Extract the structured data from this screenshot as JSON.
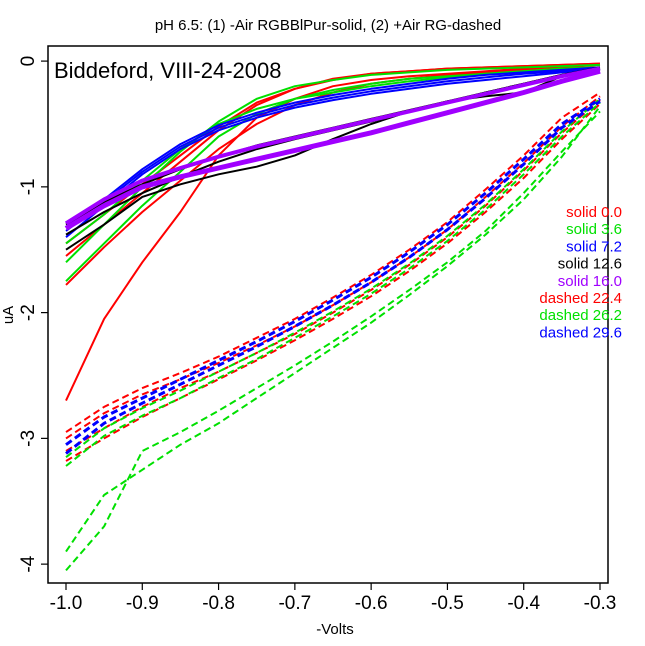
{
  "chart_data": {
    "type": "line",
    "title": "pH 6.5: (1) -Air RGBBlPur-solid, (2) +Air RG-dashed",
    "annotation": "Biddeford, VIII-24-2008",
    "xlabel": "-Volts",
    "ylabel": "uA",
    "xlim": [
      -1.0,
      -0.3
    ],
    "ylim": [
      -4.15,
      0.12
    ],
    "x_ticks": [
      "-1.0",
      "-0.9",
      "-0.8",
      "-0.7",
      "-0.6",
      "-0.5",
      "-0.4",
      "-0.3"
    ],
    "y_ticks": [
      "-4",
      "-3",
      "-2",
      "-1",
      "0"
    ],
    "grid": false,
    "legend_position": "right",
    "colors": {
      "red": "#ff0000",
      "green": "#00e000",
      "blue": "#0000ff",
      "black": "#000000",
      "purple": "#a000ff"
    },
    "legend": [
      {
        "label": "solid 0.0",
        "color": "#ff0000"
      },
      {
        "label": "solid 3.6",
        "color": "#00e000"
      },
      {
        "label": "solid 7.2",
        "color": "#0000ff"
      },
      {
        "label": "solid 12.6",
        "color": "#000000"
      },
      {
        "label": "solid 16.0",
        "color": "#a000ff"
      },
      {
        "label": "dashed 22.4",
        "color": "#ff0000"
      },
      {
        "label": "dashed 26.2",
        "color": "#00e000"
      },
      {
        "label": "dashed 29.6",
        "color": "#0000ff"
      }
    ],
    "x": [
      -1.0,
      -0.95,
      -0.9,
      -0.85,
      -0.8,
      -0.75,
      -0.7,
      -0.65,
      -0.6,
      -0.55,
      -0.5,
      -0.45,
      -0.4,
      -0.35,
      -0.3
    ],
    "series": [
      {
        "color": "#ff0000",
        "style": "solid",
        "width": 2,
        "values": [
          -2.7,
          -2.05,
          -1.6,
          -1.2,
          -0.75,
          -0.45,
          -0.3,
          -0.2,
          -0.15,
          -0.12,
          -0.1,
          -0.08,
          -0.06,
          -0.04,
          -0.03
        ]
      },
      {
        "color": "#ff0000",
        "style": "solid",
        "width": 2,
        "values": [
          -1.78,
          -1.48,
          -1.2,
          -0.95,
          -0.7,
          -0.5,
          -0.35,
          -0.25,
          -0.18,
          -0.14,
          -0.11,
          -0.09,
          -0.07,
          -0.05,
          -0.03
        ]
      },
      {
        "color": "#ff0000",
        "style": "solid",
        "width": 2,
        "values": [
          -1.55,
          -1.3,
          -1.05,
          -0.8,
          -0.55,
          -0.35,
          -0.22,
          -0.15,
          -0.1,
          -0.08,
          -0.06,
          -0.05,
          -0.04,
          -0.03,
          -0.02
        ]
      },
      {
        "color": "#ff0000",
        "style": "solid",
        "width": 2,
        "values": [
          -1.45,
          -1.22,
          -0.98,
          -0.75,
          -0.52,
          -0.33,
          -0.22,
          -0.14,
          -0.1,
          -0.08,
          -0.06,
          -0.05,
          -0.04,
          -0.03,
          -0.02
        ]
      },
      {
        "color": "#00e000",
        "style": "solid",
        "width": 2,
        "values": [
          -1.75,
          -1.45,
          -1.15,
          -0.88,
          -0.6,
          -0.42,
          -0.3,
          -0.23,
          -0.18,
          -0.14,
          -0.12,
          -0.1,
          -0.08,
          -0.06,
          -0.05
        ]
      },
      {
        "color": "#00e000",
        "style": "solid",
        "width": 2,
        "values": [
          -1.6,
          -1.3,
          -1.0,
          -0.72,
          -0.48,
          -0.3,
          -0.2,
          -0.15,
          -0.11,
          -0.09,
          -0.07,
          -0.06,
          -0.05,
          -0.04,
          -0.03
        ]
      },
      {
        "color": "#00e000",
        "style": "solid",
        "width": 2,
        "values": [
          -1.45,
          -1.22,
          -0.95,
          -0.7,
          -0.5,
          -0.38,
          -0.3,
          -0.25,
          -0.2,
          -0.16,
          -0.13,
          -0.1,
          -0.08,
          -0.06,
          -0.05
        ]
      },
      {
        "color": "#0000ff",
        "style": "solid",
        "width": 2,
        "values": [
          -1.4,
          -1.15,
          -0.9,
          -0.7,
          -0.55,
          -0.45,
          -0.37,
          -0.31,
          -0.26,
          -0.22,
          -0.18,
          -0.15,
          -0.12,
          -0.09,
          -0.07
        ]
      },
      {
        "color": "#0000ff",
        "style": "solid",
        "width": 2,
        "values": [
          -1.35,
          -1.12,
          -0.88,
          -0.68,
          -0.53,
          -0.43,
          -0.35,
          -0.29,
          -0.24,
          -0.2,
          -0.16,
          -0.13,
          -0.1,
          -0.08,
          -0.06
        ]
      },
      {
        "color": "#0000ff",
        "style": "solid",
        "width": 2,
        "values": [
          -1.32,
          -1.1,
          -0.86,
          -0.66,
          -0.51,
          -0.41,
          -0.33,
          -0.27,
          -0.22,
          -0.18,
          -0.14,
          -0.11,
          -0.09,
          -0.07,
          -0.05
        ]
      },
      {
        "color": "#000000",
        "style": "solid",
        "width": 2,
        "values": [
          -1.5,
          -1.3,
          -1.08,
          -0.98,
          -0.9,
          -0.84,
          -0.75,
          -0.62,
          -0.5,
          -0.4,
          -0.32,
          -0.28,
          -0.25,
          -0.12,
          -0.06
        ]
      },
      {
        "color": "#000000",
        "style": "solid",
        "width": 2,
        "values": [
          -1.38,
          -1.2,
          -1.05,
          -0.92,
          -0.8,
          -0.7,
          -0.62,
          -0.55,
          -0.48,
          -0.4,
          -0.33,
          -0.25,
          -0.18,
          -0.11,
          -0.06
        ]
      },
      {
        "color": "#000000",
        "style": "solid",
        "width": 2,
        "values": [
          -1.3,
          -1.12,
          -0.98,
          -0.86,
          -0.76,
          -0.67,
          -0.6,
          -0.53,
          -0.46,
          -0.39,
          -0.32,
          -0.25,
          -0.18,
          -0.11,
          -0.05
        ]
      },
      {
        "color": "#a000ff",
        "style": "solid",
        "width": 5,
        "values": [
          -1.33,
          -1.15,
          -1.0,
          -0.92,
          -0.85,
          -0.78,
          -0.71,
          -0.64,
          -0.57,
          -0.49,
          -0.41,
          -0.33,
          -0.25,
          -0.16,
          -0.08
        ]
      },
      {
        "color": "#a000ff",
        "style": "solid",
        "width": 4,
        "values": [
          -1.29,
          -1.1,
          -0.95,
          -0.85,
          -0.76,
          -0.68,
          -0.61,
          -0.54,
          -0.47,
          -0.4,
          -0.33,
          -0.26,
          -0.19,
          -0.12,
          -0.06
        ]
      },
      {
        "color": "#ff0000",
        "style": "dashed",
        "width": 2,
        "values": [
          -2.95,
          -2.75,
          -2.6,
          -2.48,
          -2.35,
          -2.2,
          -2.05,
          -1.88,
          -1.7,
          -1.5,
          -1.28,
          -1.02,
          -0.75,
          -0.45,
          -0.25
        ]
      },
      {
        "color": "#ff0000",
        "style": "dashed",
        "width": 2,
        "values": [
          -3.0,
          -2.8,
          -2.65,
          -2.53,
          -2.4,
          -2.26,
          -2.11,
          -1.94,
          -1.76,
          -1.56,
          -1.34,
          -1.08,
          -0.81,
          -0.52,
          -0.28
        ]
      },
      {
        "color": "#ff0000",
        "style": "dashed",
        "width": 2,
        "values": [
          -3.1,
          -2.92,
          -2.75,
          -2.6,
          -2.47,
          -2.32,
          -2.17,
          -2.0,
          -1.82,
          -1.62,
          -1.4,
          -1.15,
          -0.87,
          -0.57,
          -0.31
        ]
      },
      {
        "color": "#ff0000",
        "style": "dashed",
        "width": 2,
        "values": [
          -3.18,
          -3.0,
          -2.83,
          -2.68,
          -2.53,
          -2.38,
          -2.22,
          -2.05,
          -1.87,
          -1.67,
          -1.45,
          -1.2,
          -0.93,
          -0.62,
          -0.34
        ]
      },
      {
        "color": "#00e000",
        "style": "dashed",
        "width": 2,
        "values": [
          -4.05,
          -3.7,
          -3.1,
          -2.95,
          -2.78,
          -2.6,
          -2.42,
          -2.23,
          -2.03,
          -1.82,
          -1.6,
          -1.35,
          -1.05,
          -0.72,
          -0.4
        ]
      },
      {
        "color": "#00e000",
        "style": "dashed",
        "width": 2,
        "values": [
          -3.9,
          -3.45,
          -3.25,
          -3.05,
          -2.88,
          -2.68,
          -2.48,
          -2.28,
          -2.08,
          -1.86,
          -1.63,
          -1.38,
          -1.1,
          -0.76,
          -0.36
        ]
      },
      {
        "color": "#00e000",
        "style": "dashed",
        "width": 2,
        "values": [
          -3.22,
          -2.98,
          -2.82,
          -2.68,
          -2.52,
          -2.37,
          -2.2,
          -2.03,
          -1.85,
          -1.65,
          -1.43,
          -1.18,
          -0.9,
          -0.6,
          -0.33
        ]
      },
      {
        "color": "#00e000",
        "style": "dashed",
        "width": 2,
        "values": [
          -3.15,
          -2.92,
          -2.76,
          -2.62,
          -2.47,
          -2.32,
          -2.16,
          -1.99,
          -1.81,
          -1.61,
          -1.39,
          -1.14,
          -0.86,
          -0.56,
          -0.3
        ]
      },
      {
        "color": "#0000ff",
        "style": "dashed",
        "width": 3,
        "values": [
          -3.12,
          -2.88,
          -2.72,
          -2.57,
          -2.42,
          -2.27,
          -2.11,
          -1.94,
          -1.76,
          -1.56,
          -1.34,
          -1.09,
          -0.82,
          -0.53,
          -0.32
        ]
      },
      {
        "color": "#0000ff",
        "style": "dashed",
        "width": 3,
        "values": [
          -3.05,
          -2.83,
          -2.68,
          -2.53,
          -2.38,
          -2.23,
          -2.07,
          -1.9,
          -1.72,
          -1.52,
          -1.3,
          -1.05,
          -0.78,
          -0.5,
          -0.3
        ]
      }
    ]
  }
}
